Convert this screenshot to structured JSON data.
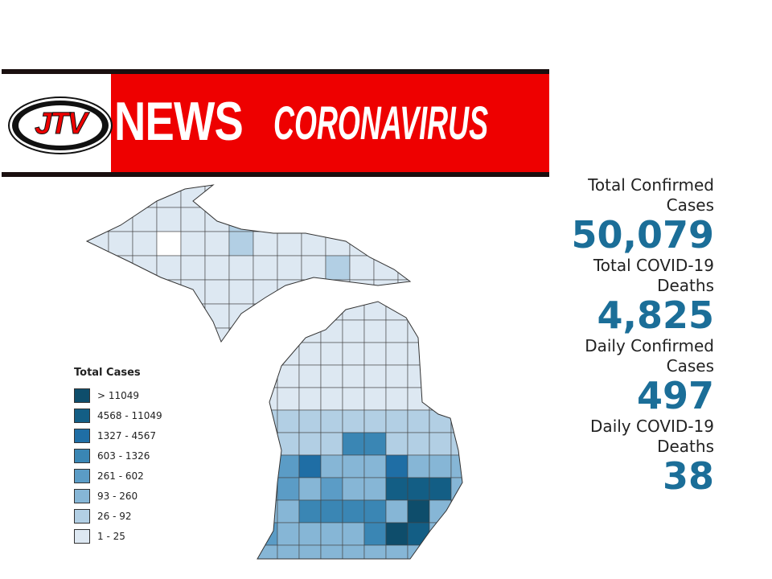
{
  "header": {
    "logo": "JTV",
    "title": "NEWS",
    "subtitle": "CORONAVIRUS"
  },
  "legend": {
    "title": "Total Cases",
    "items": [
      "> 11049",
      "4568 - 11049",
      "1327 - 4567",
      "603 - 1326",
      "261 - 602",
      "93 - 260",
      "26 - 92",
      "1 - 25"
    ]
  },
  "stats": [
    {
      "label": "Total Confirmed Cases",
      "value": "50,079"
    },
    {
      "label": "Total COVID-19 Deaths",
      "value": "4,825"
    },
    {
      "label": "Daily Confirmed Cases",
      "value": "497"
    },
    {
      "label": "Daily COVID-19 Deaths",
      "value": "38"
    }
  ]
}
